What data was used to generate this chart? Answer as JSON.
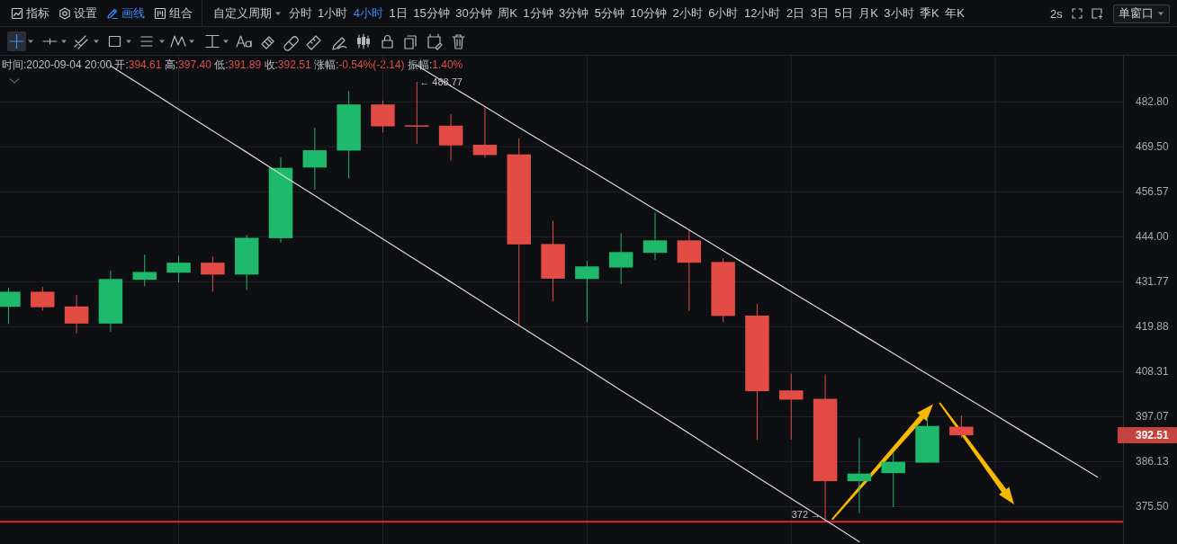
{
  "chart_data": {
    "type": "candlestick",
    "subtitle": "时间:2020-09-04 20:00 开:394.61 高:397.40 低:391.89 收:392.51 涨幅:-0.54%(-2.14) 振幅:1.40%",
    "categories": [
      null,
      null,
      null,
      null,
      null,
      null,
      null,
      null,
      null,
      null,
      null,
      null,
      null,
      null,
      null,
      null,
      null,
      null,
      null,
      null,
      null,
      null,
      null,
      null,
      null,
      null,
      null,
      null,
      null,
      null,
      null,
      null,
      null
    ],
    "ohlc": [
      [
        425.1,
        430.1,
        420.6,
        429.1
      ],
      [
        429.1,
        430.4,
        424.1,
        425.0
      ],
      [
        425.2,
        428.2,
        418.1,
        420.7
      ],
      [
        420.7,
        434.8,
        418.6,
        432.5
      ],
      [
        432.3,
        439.1,
        430.6,
        434.4
      ],
      [
        434.2,
        438.8,
        431.6,
        436.9
      ],
      [
        436.9,
        438.6,
        429.1,
        433.7
      ],
      [
        433.7,
        444.5,
        429.6,
        443.7
      ],
      [
        443.6,
        466.4,
        442.4,
        463.4
      ],
      [
        463.5,
        475.1,
        457.3,
        468.5
      ],
      [
        468.4,
        486.0,
        460.4,
        482.0
      ],
      [
        482.0,
        483.2,
        473.7,
        475.5
      ],
      [
        475.8,
        488.77,
        470.4,
        475.6
      ],
      [
        475.7,
        479.1,
        465.5,
        469.9
      ],
      [
        470.1,
        481.2,
        466.3,
        467.1
      ],
      [
        467.3,
        472.0,
        420.3,
        441.9
      ],
      [
        442.0,
        448.4,
        426.6,
        432.6
      ],
      [
        432.5,
        437.4,
        421.1,
        435.9
      ],
      [
        435.6,
        445.0,
        431.1,
        439.8
      ],
      [
        439.6,
        450.8,
        437.7,
        443.0
      ],
      [
        443.0,
        445.8,
        424.0,
        436.9
      ],
      [
        437.1,
        438.1,
        421.1,
        422.7
      ],
      [
        422.8,
        425.9,
        391.4,
        403.4
      ],
      [
        403.6,
        407.8,
        391.5,
        401.3
      ],
      [
        401.5,
        407.6,
        372,
        381.5
      ],
      [
        381.5,
        391.8,
        374.0,
        383.3
      ],
      [
        383.4,
        388.4,
        375.4,
        386.1
      ],
      [
        385.9,
        396.9,
        385.9,
        394.8
      ],
      [
        394.61,
        397.4,
        391.89,
        392.51
      ],
      null,
      null,
      null,
      null
    ],
    "colors": [
      "#1fb96b",
      "#e24c45",
      "#e24c45",
      "#1fb96b",
      "#1fb96b",
      "#1fb96b",
      "#e24c45",
      "#1fb96b",
      "#1fb96b",
      "#1fb96b",
      "#1fb96b",
      "#e24c45",
      "#e24c45",
      "#e24c45",
      "#e24c45",
      "#e24c45",
      "#e24c45",
      "#1fb96b",
      "#1fb96b",
      "#1fb96b",
      "#e24c45",
      "#e24c45",
      "#e24c45",
      "#e24c45",
      "#e24c45",
      "#1fb96b",
      "#1fb96b",
      "#1fb96b",
      "#e24c45",
      null,
      null,
      null,
      null
    ],
    "series": [
      {
        "type": "line",
        "color": "#d9d9d9",
        "values": [
          null,
          null,
          null,
          null,
          null,
          null,
          null,
          null,
          null,
          null,
          null,
          null,
          493.8,
          487.5,
          481.4,
          475.2,
          469.2,
          463.3,
          457.4,
          451.6,
          445.9,
          440.2,
          434.6,
          429.1,
          423.7,
          418.3,
          413.0,
          407.7,
          402.6,
          397.5,
          392.4,
          387.4,
          382.5
        ]
      },
      {
        "type": "line",
        "color": "#d9d9d9",
        "values": [
          null,
          null,
          null,
          493.7,
          487.1,
          480.6,
          474.2,
          467.9,
          461.6,
          455.5,
          449.4,
          443.4,
          437.5,
          431.7,
          425.9,
          420.2,
          414.6,
          409.1,
          403.6,
          398.3,
          393.0,
          387.7,
          382.5,
          377.4,
          372.4,
          367.4,
          null,
          null,
          null,
          null,
          null,
          null,
          null
        ]
      }
    ],
    "ylim": [
      366.9,
      496.8
    ],
    "yticks": [
      {
        "value": 375.5,
        "label": "375.50"
      },
      386.13,
      397.07,
      408.31,
      419.88,
      431.77,
      {
        "value": 444,
        "label": "444.00"
      },
      456.57,
      {
        "value": 469.5,
        "label": "469.50"
      },
      {
        "value": 482.8,
        "label": "482.80"
      }
    ],
    "log": true,
    "grid": true,
    "tick_labels": "y",
    "ref_lines": [
      {
        "axis": "y",
        "value": 372,
        "color": "#e3262b"
      }
    ],
    "annotations": [
      "指标",
      "设置",
      "画线",
      "组合",
      "自定义周期",
      "分时",
      "1小时",
      "4小时",
      "1日",
      "15分钟",
      "30分钟",
      "周K",
      "1分钟",
      "3分钟",
      "5分钟",
      "10分钟",
      "2小时",
      "6小时",
      "12小时",
      "2日",
      "3日",
      "5日",
      "月K",
      "3小时",
      "季K",
      "年K",
      "2s",
      "单窗口",
      "392.51",
      {
        "text": "← 488.77",
        "y": 488.77
      },
      {
        "text": "372 →",
        "y": 372
      }
    ]
  }
}
